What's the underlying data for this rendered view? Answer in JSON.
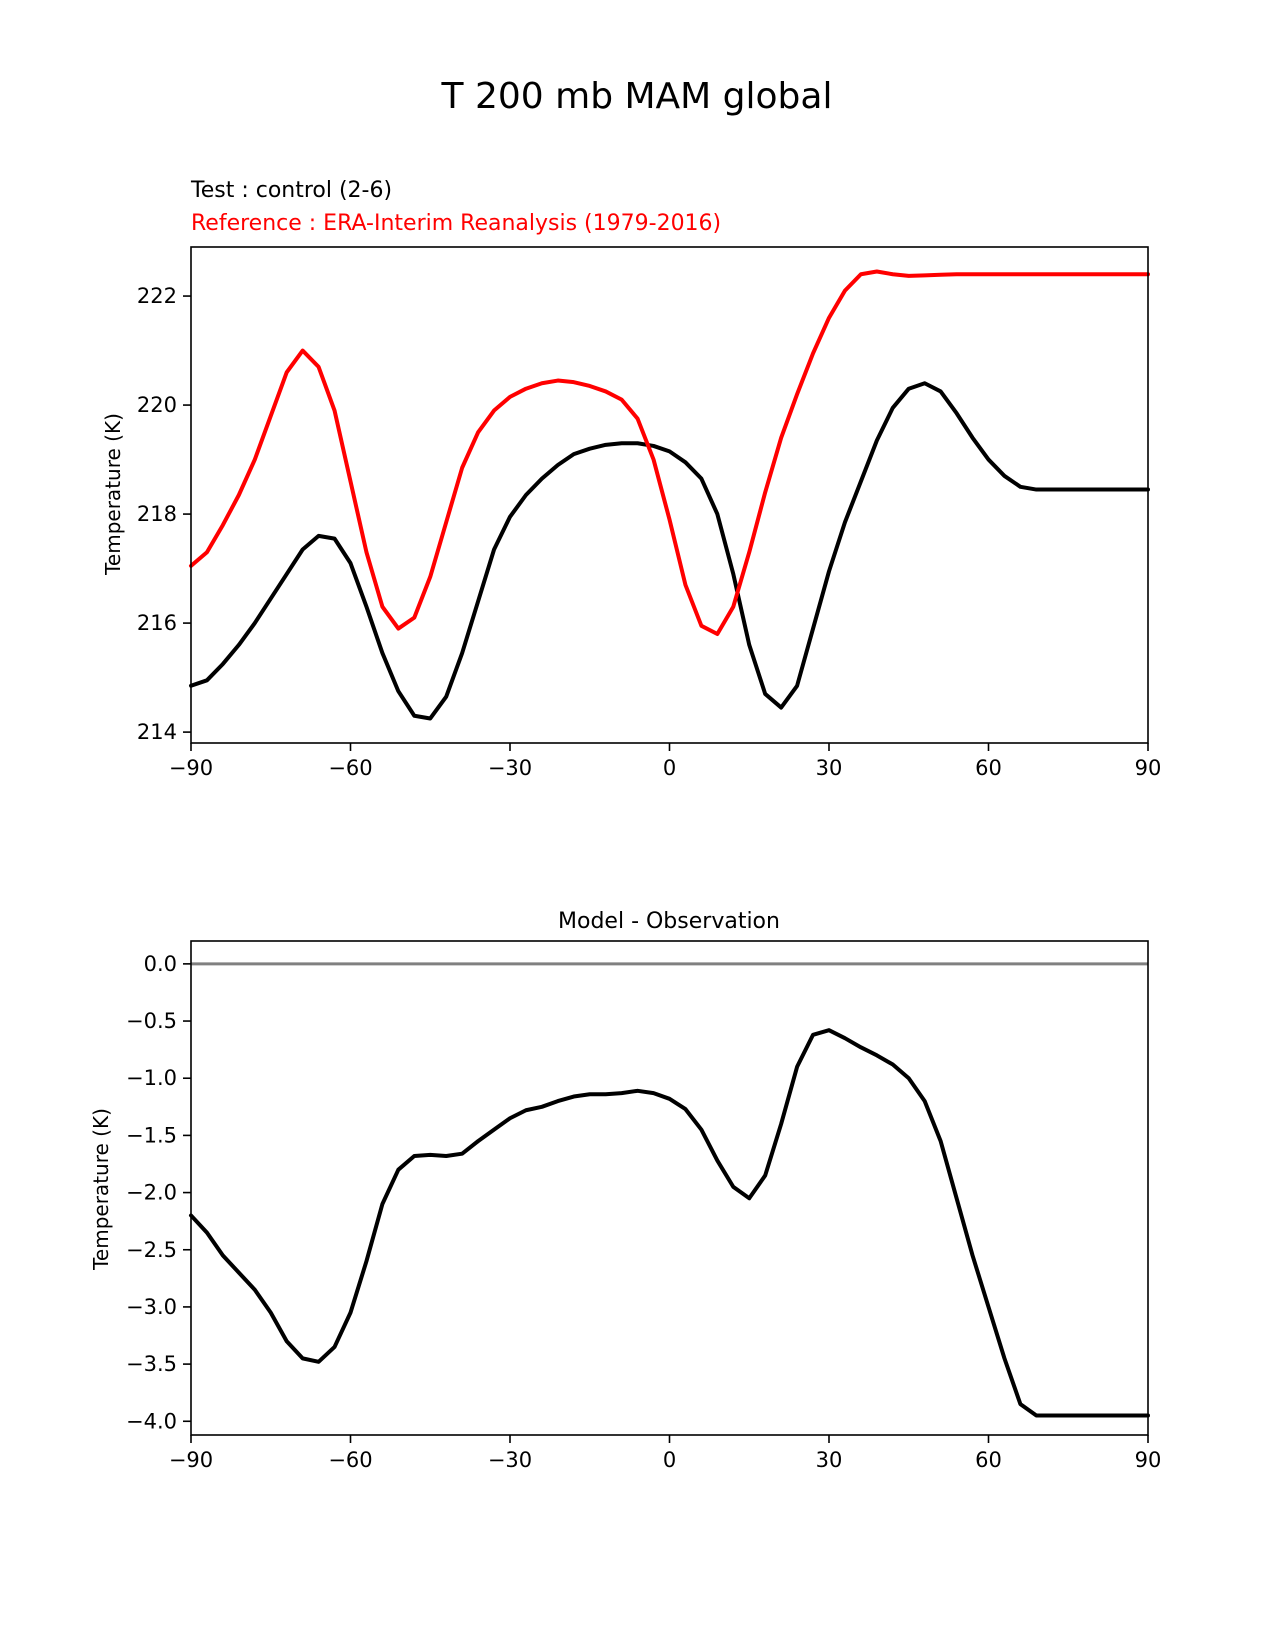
{
  "figure": {
    "suptitle": "T 200 mb MAM global"
  },
  "colors": {
    "test": "#000000",
    "reference": "#ff0000",
    "zero_line": "#808080",
    "axes": "#000000"
  },
  "chart_data": [
    {
      "type": "line",
      "title_test": "Test : control (2-6)",
      "title_reference": "Reference : ERA-Interim Reanalysis (1979-2016)",
      "xlabel": "",
      "ylabel": "Temperature (K)",
      "xlim": [
        -90,
        90
      ],
      "ylim": [
        213.8,
        222.9
      ],
      "xticks": [
        -90,
        -60,
        -30,
        0,
        30,
        60,
        90
      ],
      "xtick_labels": [
        "−90",
        "−60",
        "−30",
        "0",
        "30",
        "60",
        "90"
      ],
      "yticks": [
        214,
        216,
        218,
        220,
        222
      ],
      "ytick_labels": [
        "214",
        "216",
        "218",
        "220",
        "222"
      ],
      "grid": false,
      "series": [
        {
          "name": "Test : control (2-6)",
          "color": "#000000",
          "x": [
            -90,
            -87,
            -84,
            -81,
            -78,
            -75,
            -72,
            -69,
            -66,
            -63,
            -60,
            -57,
            -54,
            -51,
            -48,
            -45,
            -42,
            -39,
            -36,
            -33,
            -30,
            -27,
            -24,
            -21,
            -18,
            -15,
            -12,
            -9,
            -6,
            -3,
            0,
            3,
            6,
            9,
            12,
            15,
            18,
            21,
            24,
            27,
            30,
            33,
            36,
            39,
            42,
            45,
            48,
            51,
            54,
            57,
            60,
            63,
            66,
            69,
            72,
            75,
            78,
            81,
            84,
            87,
            90
          ],
          "y": [
            214.85,
            214.95,
            215.25,
            215.6,
            216.0,
            216.45,
            216.9,
            217.35,
            217.6,
            217.55,
            217.1,
            216.3,
            215.45,
            214.75,
            214.3,
            214.25,
            214.65,
            215.45,
            216.4,
            217.35,
            217.95,
            218.35,
            218.65,
            218.9,
            219.1,
            219.2,
            219.27,
            219.3,
            219.3,
            219.25,
            219.15,
            218.95,
            218.65,
            218.0,
            216.9,
            215.6,
            214.7,
            214.45,
            214.85,
            215.9,
            216.95,
            217.85,
            218.6,
            219.35,
            219.95,
            220.3,
            220.4,
            220.25,
            219.85,
            219.4,
            219.0,
            218.7,
            218.5,
            218.45,
            218.45,
            218.45,
            218.45,
            218.45,
            218.45,
            218.45,
            218.45
          ]
        },
        {
          "name": "Reference : ERA-Interim Reanalysis (1979-2016)",
          "color": "#ff0000",
          "x": [
            -90,
            -87,
            -84,
            -81,
            -78,
            -75,
            -72,
            -69,
            -66,
            -63,
            -60,
            -57,
            -54,
            -51,
            -48,
            -45,
            -42,
            -39,
            -36,
            -33,
            -30,
            -27,
            -24,
            -21,
            -18,
            -15,
            -12,
            -9,
            -6,
            -3,
            0,
            3,
            6,
            9,
            12,
            15,
            18,
            21,
            24,
            27,
            30,
            33,
            36,
            39,
            42,
            45,
            48,
            51,
            54,
            57,
            60,
            63,
            66,
            69,
            72,
            75,
            78,
            81,
            84,
            87,
            90
          ],
          "y": [
            217.05,
            217.3,
            217.8,
            218.35,
            219.0,
            219.8,
            220.6,
            221.0,
            220.7,
            219.9,
            218.6,
            217.3,
            216.3,
            215.9,
            216.1,
            216.85,
            217.85,
            218.85,
            219.5,
            219.9,
            220.15,
            220.3,
            220.4,
            220.45,
            220.42,
            220.35,
            220.25,
            220.1,
            219.75,
            219.0,
            217.9,
            216.7,
            215.95,
            215.8,
            216.3,
            217.3,
            218.4,
            219.4,
            220.2,
            220.95,
            221.6,
            222.1,
            222.4,
            222.45,
            222.4,
            222.37,
            222.38,
            222.39,
            222.4,
            222.4,
            222.4,
            222.4,
            222.4,
            222.4,
            222.4,
            222.4,
            222.4,
            222.4,
            222.4,
            222.4,
            222.4
          ]
        }
      ]
    },
    {
      "type": "line",
      "title": "Model - Observation",
      "xlabel": "",
      "ylabel": "Temperature (K)",
      "xlim": [
        -90,
        90
      ],
      "ylim": [
        -4.12,
        0.2
      ],
      "xticks": [
        -90,
        -60,
        -30,
        0,
        30,
        60,
        90
      ],
      "xtick_labels": [
        "−90",
        "−60",
        "−30",
        "0",
        "30",
        "60",
        "90"
      ],
      "yticks": [
        0.0,
        -0.5,
        -1.0,
        -1.5,
        -2.0,
        -2.5,
        -3.0,
        -3.5,
        -4.0
      ],
      "ytick_labels": [
        "0.0",
        "−0.5",
        "−1.0",
        "−1.5",
        "−2.0",
        "−2.5",
        "−3.0",
        "−3.5",
        "−4.0"
      ],
      "grid": false,
      "zero_line": 0.0,
      "series": [
        {
          "name": "Model - Observation",
          "color": "#000000",
          "x": [
            -90,
            -87,
            -84,
            -81,
            -78,
            -75,
            -72,
            -69,
            -66,
            -63,
            -60,
            -57,
            -54,
            -51,
            -48,
            -45,
            -42,
            -39,
            -36,
            -33,
            -30,
            -27,
            -24,
            -21,
            -18,
            -15,
            -12,
            -9,
            -6,
            -3,
            0,
            3,
            6,
            9,
            12,
            15,
            18,
            21,
            24,
            27,
            30,
            33,
            36,
            39,
            42,
            45,
            48,
            51,
            54,
            57,
            60,
            63,
            66,
            69,
            72,
            75,
            78,
            81,
            84,
            87,
            90
          ],
          "y": [
            -2.2,
            -2.35,
            -2.55,
            -2.7,
            -2.85,
            -3.05,
            -3.3,
            -3.45,
            -3.48,
            -3.35,
            -3.05,
            -2.6,
            -2.1,
            -1.8,
            -1.68,
            -1.67,
            -1.68,
            -1.66,
            -1.55,
            -1.45,
            -1.35,
            -1.28,
            -1.25,
            -1.2,
            -1.16,
            -1.14,
            -1.14,
            -1.13,
            -1.11,
            -1.13,
            -1.18,
            -1.27,
            -1.45,
            -1.72,
            -1.95,
            -2.05,
            -1.85,
            -1.4,
            -0.9,
            -0.62,
            -0.58,
            -0.65,
            -0.73,
            -0.8,
            -0.88,
            -1.0,
            -1.2,
            -1.55,
            -2.05,
            -2.55,
            -3.0,
            -3.45,
            -3.85,
            -3.95,
            -3.95,
            -3.95,
            -3.95,
            -3.95,
            -3.95,
            -3.95,
            -3.95
          ]
        }
      ]
    }
  ]
}
